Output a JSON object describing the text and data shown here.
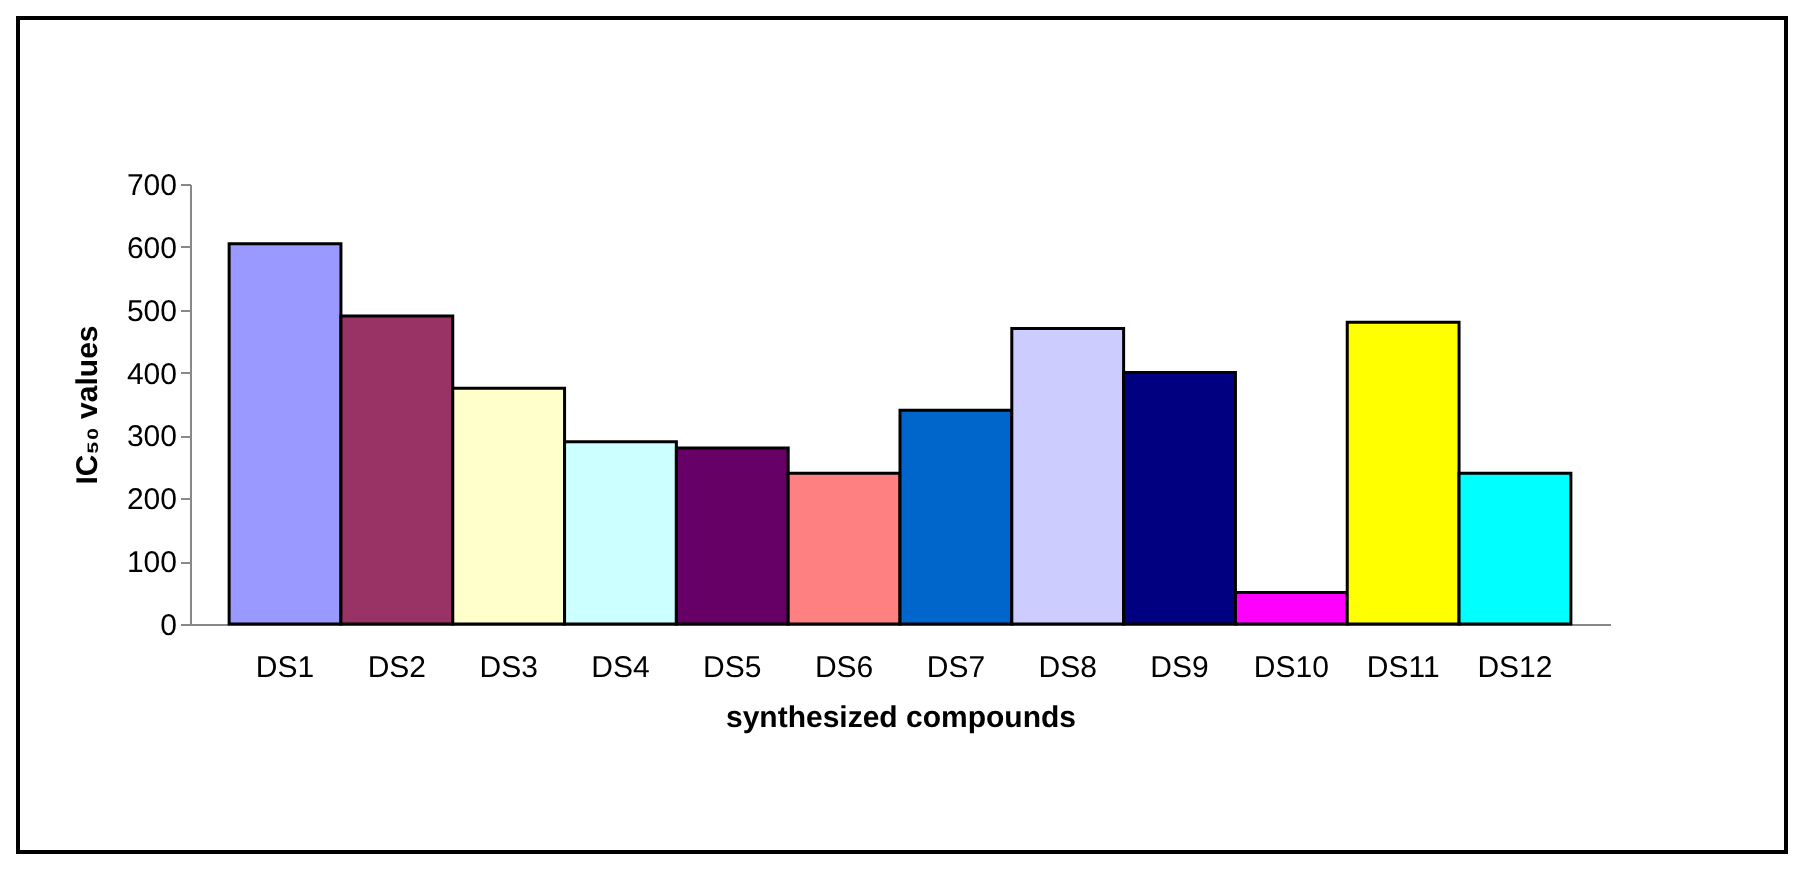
{
  "chart_data": {
    "type": "bar",
    "xlabel": "synthesized compounds",
    "ylabel": "IC₅₀ values",
    "categories": [
      "DS1",
      "DS2",
      "DS3",
      "DS4",
      "DS5",
      "DS6",
      "DS7",
      "DS8",
      "DS9",
      "DS10",
      "DS11",
      "DS12"
    ],
    "values": [
      605,
      490,
      375,
      290,
      280,
      240,
      340,
      470,
      400,
      50,
      480,
      240
    ],
    "colors": [
      "#9999ff",
      "#993366",
      "#ffffcc",
      "#ccffff",
      "#660066",
      "#ff8080",
      "#0066cc",
      "#ccccff",
      "#000080",
      "#ff00ff",
      "#ffff00",
      "#00ffff"
    ],
    "ylim": [
      0,
      700
    ],
    "yticks": [
      0,
      100,
      200,
      300,
      400,
      500,
      600,
      700
    ],
    "grid": false,
    "legend": false
  }
}
